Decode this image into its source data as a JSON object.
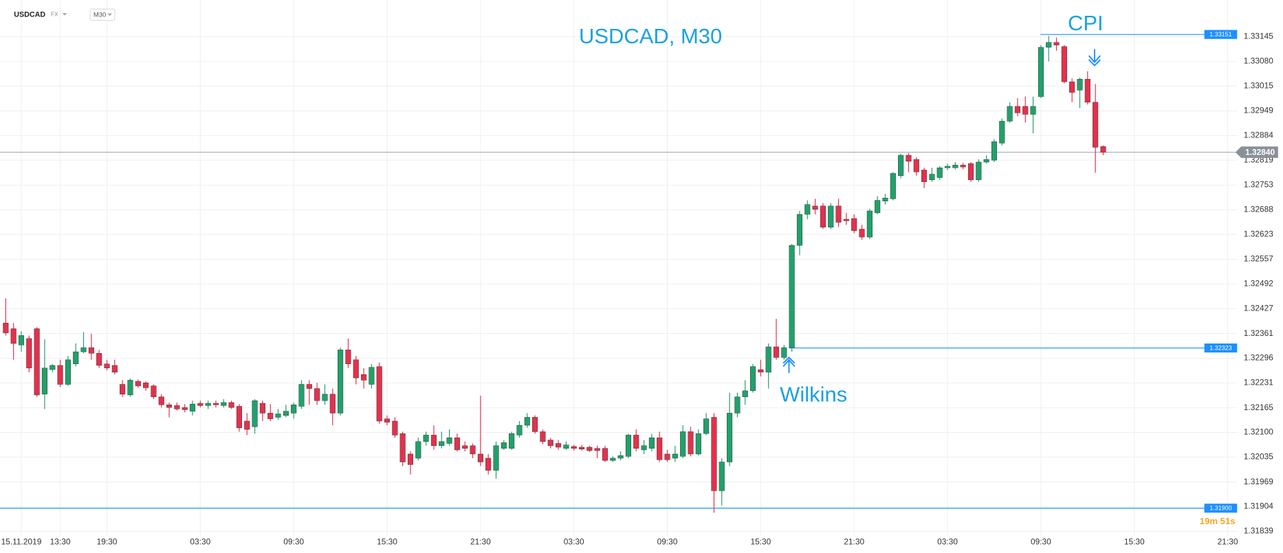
{
  "chart_data": {
    "type": "candlestick",
    "title": "USDCAD, M30",
    "symbol_label": "USDCAD",
    "market_label": "FX",
    "timeframe_label": "M30",
    "annotations": [
      "CPI",
      "Wilkins"
    ],
    "timer": "19m 51s",
    "up_color": "#22a06b",
    "down_color": "#e5304d",
    "level_color": "#1e90ff",
    "grid": true,
    "ylim": [
      1.31827,
      1.33242
    ],
    "yticks": [
      1.33145,
      {
        "value": 1.3308,
        "label": "1.33080"
      },
      1.33015,
      1.32949,
      1.32884,
      1.32819,
      1.32753,
      1.32688,
      1.32623,
      1.32557,
      1.32492,
      1.32427,
      1.32361,
      1.32296,
      1.32231,
      1.32165,
      {
        "value": 1.321,
        "label": "1.32100"
      },
      1.32035,
      1.31969,
      1.31904,
      1.31839
    ],
    "levels": [
      1.33151,
      1.32323,
      {
        "value": 1.319,
        "label": "1.31900"
      }
    ],
    "current_price": {
      "value": 1.3284,
      "label": "1.32840"
    },
    "categories": [
      null,
      null,
      "15.11.2019",
      null,
      null,
      null,
      null,
      "13:30",
      null,
      null,
      null,
      null,
      null,
      "19:30",
      null,
      null,
      null,
      null,
      null,
      null,
      null,
      null,
      null,
      null,
      null,
      "03:30",
      null,
      null,
      null,
      null,
      null,
      null,
      null,
      null,
      null,
      null,
      null,
      "09:30",
      null,
      null,
      null,
      null,
      null,
      null,
      null,
      null,
      null,
      null,
      null,
      "15:30",
      null,
      null,
      null,
      null,
      null,
      null,
      null,
      null,
      null,
      null,
      null,
      "21:30",
      null,
      null,
      null,
      null,
      null,
      null,
      null,
      null,
      null,
      null,
      null,
      "03:30",
      null,
      null,
      null,
      null,
      null,
      null,
      null,
      null,
      null,
      null,
      null,
      "09:30",
      null,
      null,
      null,
      null,
      null,
      null,
      null,
      null,
      null,
      null,
      null,
      "15:30",
      null,
      null,
      null,
      null,
      null,
      null,
      null,
      null,
      null,
      null,
      null,
      "21:30",
      null,
      null,
      null,
      null,
      null,
      null,
      null,
      null,
      null,
      null,
      null,
      "03:30",
      null,
      null,
      null,
      null,
      null,
      null,
      null,
      null,
      null,
      null,
      null,
      "09:30",
      null,
      null,
      null,
      null,
      null,
      null,
      null,
      null,
      null,
      null,
      null,
      "15:30",
      null,
      null,
      null,
      null,
      null,
      null,
      null,
      null,
      null,
      null,
      null,
      "21:30"
    ],
    "open": [
      1.32389,
      1.32374,
      1.32331,
      1.32348,
      1.32374,
      1.32201,
      1.32266,
      1.32277,
      1.32227,
      1.32281,
      1.32313,
      1.32324,
      1.32309,
      1.32281,
      1.32277,
      1.32227,
      1.32199,
      1.32235,
      1.32231,
      1.32223,
      1.32194,
      1.32173,
      1.32171,
      1.32166,
      1.32156,
      1.32177,
      1.32171,
      1.32177,
      1.32171,
      1.32179,
      1.32169,
      1.3213,
      1.32115,
      1.32177,
      1.32151,
      1.3214,
      1.32145,
      1.32151,
      1.32169,
      1.32227,
      1.32216,
      1.32184,
      1.32201,
      1.32151,
      1.32318,
      1.32292,
      1.32253,
      1.32227,
      1.32274,
      1.32136,
      1.3213,
      1.32097,
      1.32043,
      1.32032,
      1.32076,
      1.32093,
      1.32065,
      1.32071,
      1.32086,
      1.32065,
      1.32065,
      1.32043,
      1.32032,
      1.32,
      1.32058,
      1.32058,
      1.32093,
      1.32119,
      1.3214,
      1.32102,
      1.3208,
      1.32071,
      1.32058,
      1.32063,
      1.32061,
      1.32061,
      1.32058,
      1.32058,
      1.32026,
      1.32032,
      1.32037,
      1.32093,
      1.32054,
      1.32058,
      1.32086,
      1.32043,
      1.32032,
      1.32037,
      1.32102,
      1.32043,
      1.32097,
      1.3214,
      1.31946,
      1.32022,
      1.32151,
      1.32194,
      1.3221,
      1.32266,
      1.32259,
      1.32326,
      1.32298,
      1.32324,
      1.32594,
      1.32676,
      1.32698,
      1.32698,
      1.32642,
      1.32698,
      1.32663,
      1.32665,
      1.32637,
      1.32616,
      1.3268,
      1.32711,
      1.32717,
      1.32778,
      1.32832,
      1.32821,
      1.32793,
      1.32767,
      1.32773,
      1.32799,
      1.32799,
      1.32806,
      1.3281,
      1.32767,
      1.32814,
      1.32819,
      1.32864,
      1.32922,
      1.32961,
      1.32961,
      1.3294,
      1.32987,
      1.33117,
      1.3313,
      1.33119,
      1.33026,
      1.33004,
      1.33033,
      1.32972,
      1.32855,
      null,
      null,
      null,
      null,
      null,
      null,
      null,
      null,
      null,
      null,
      null,
      null,
      null,
      null,
      null,
      null
    ],
    "high": [
      1.32454,
      1.32389,
      1.32367,
      1.32356,
      1.32378,
      1.32346,
      1.32281,
      1.32292,
      1.32302,
      1.32335,
      1.32365,
      1.32361,
      1.32318,
      1.32292,
      1.32292,
      1.32238,
      1.32242,
      1.3224,
      1.32235,
      1.32227,
      1.32201,
      1.32179,
      1.32179,
      1.32175,
      1.32184,
      1.32184,
      1.32184,
      1.32184,
      1.32188,
      1.32184,
      1.32175,
      1.32151,
      1.32188,
      1.32184,
      1.32175,
      1.32162,
      1.32173,
      1.32179,
      1.32238,
      1.32238,
      1.32231,
      1.32227,
      1.32216,
      1.32324,
      1.32348,
      1.32302,
      1.3227,
      1.32281,
      1.32285,
      1.32145,
      1.3214,
      1.32102,
      1.3205,
      1.32086,
      1.32102,
      1.32119,
      1.32102,
      1.32108,
      1.32097,
      1.32076,
      1.32071,
      1.32197,
      1.32043,
      1.32076,
      1.3208,
      1.32102,
      1.3213,
      1.32151,
      1.32145,
      1.32108,
      1.32086,
      1.3208,
      1.32076,
      1.32067,
      1.32067,
      1.32065,
      1.32065,
      1.32065,
      1.32037,
      1.3205,
      1.32097,
      1.32108,
      1.3208,
      1.32097,
      1.32102,
      1.32054,
      1.32065,
      1.32119,
      1.32115,
      1.32108,
      1.32151,
      1.32151,
      1.32032,
      1.32205,
      1.32205,
      1.32238,
      1.32281,
      1.32292,
      1.32335,
      1.324,
      1.32331,
      1.32598,
      1.32685,
      1.32713,
      1.32717,
      1.32706,
      1.32706,
      1.32717,
      1.3268,
      1.32676,
      1.32648,
      1.32691,
      1.32724,
      1.3273,
      1.32788,
      1.32836,
      1.32838,
      1.32827,
      1.32799,
      1.32799,
      1.32803,
      1.3281,
      1.32814,
      1.32812,
      1.32814,
      1.32821,
      1.32832,
      1.32875,
      1.32929,
      1.32972,
      1.32983,
      1.32987,
      1.32987,
      1.33123,
      1.33147,
      1.33143,
      1.33123,
      1.33035,
      1.33037,
      1.33054,
      1.3302,
      1.32858,
      null,
      null,
      null,
      null,
      null,
      null,
      null,
      null,
      null,
      null,
      null,
      null,
      null,
      null,
      null,
      null
    ],
    "low": [
      1.32356,
      1.32292,
      1.32313,
      1.32259,
      1.32194,
      1.32162,
      1.32259,
      1.3222,
      1.32223,
      1.32274,
      1.32309,
      1.32292,
      1.3227,
      1.32264,
      1.32253,
      1.32194,
      1.32194,
      1.32218,
      1.3221,
      1.32188,
      1.32166,
      1.3214,
      1.32158,
      1.32153,
      1.32145,
      1.32166,
      1.32162,
      1.32166,
      1.32166,
      1.32162,
      1.32102,
      1.32093,
      1.32097,
      1.3213,
      1.3213,
      1.32134,
      1.3214,
      1.32136,
      1.32162,
      1.32173,
      1.32173,
      1.32173,
      1.32119,
      1.32145,
      1.3227,
      1.32227,
      1.32216,
      1.32216,
      1.32123,
      1.32119,
      1.32086,
      1.32011,
      1.31989,
      1.32026,
      1.32065,
      1.32054,
      1.32058,
      1.32065,
      1.3205,
      1.3205,
      1.32032,
      1.32011,
      1.31989,
      1.31978,
      1.32054,
      1.32054,
      1.32086,
      1.32112,
      1.32097,
      1.32069,
      1.32058,
      1.32054,
      1.32054,
      1.32052,
      1.32052,
      1.32048,
      1.32032,
      1.32022,
      1.32022,
      1.32026,
      1.32032,
      1.3205,
      1.32043,
      1.3205,
      1.32022,
      1.32022,
      1.32022,
      1.32032,
      1.32037,
      1.32039,
      1.32093,
      1.31888,
      1.31907,
      1.32011,
      1.3214,
      1.32173,
      1.32205,
      1.32248,
      1.32216,
      1.32292,
      1.32292,
      1.32313,
      1.32568,
      1.32663,
      1.32676,
      1.32637,
      1.32637,
      1.32642,
      1.32648,
      1.32626,
      1.32609,
      1.32611,
      1.32676,
      1.32702,
      1.32713,
      1.32771,
      1.32788,
      1.32778,
      1.32745,
      1.32762,
      1.32767,
      1.32793,
      1.32795,
      1.32795,
      1.32762,
      1.32762,
      1.3281,
      1.32814,
      1.32858,
      1.32918,
      1.32935,
      1.32918,
      1.3289,
      1.32983,
      1.3308,
      1.33108,
      1.33022,
      1.32972,
      1.32957,
      1.32966,
      1.32786,
      1.32832,
      null,
      null,
      null,
      null,
      null,
      null,
      null,
      null,
      null,
      null,
      null,
      null,
      null,
      null,
      null,
      null
    ],
    "close": [
      1.32363,
      1.32335,
      1.32356,
      1.3227,
      1.32199,
      1.3227,
      1.32277,
      1.32227,
      1.32292,
      1.32313,
      1.32324,
      1.32309,
      1.32277,
      1.3227,
      1.32259,
      1.32201,
      1.32238,
      1.32223,
      1.32218,
      1.32194,
      1.32173,
      1.32166,
      1.32162,
      1.3216,
      1.32175,
      1.32171,
      1.32177,
      1.32173,
      1.32179,
      1.32166,
      1.32112,
      1.32108,
      1.32184,
      1.32151,
      1.32136,
      1.32149,
      1.32156,
      1.32173,
      1.32227,
      1.32216,
      1.32184,
      1.32201,
      1.32151,
      1.32318,
      1.32281,
      1.32244,
      1.32238,
      1.32272,
      1.3213,
      1.32127,
      1.32093,
      1.32022,
      1.32015,
      1.32076,
      1.32093,
      1.32065,
      1.32076,
      1.32086,
      1.32054,
      1.32058,
      1.32043,
      1.32022,
      1.32,
      1.32065,
      1.32073,
      1.32097,
      1.32119,
      1.3214,
      1.32102,
      1.32076,
      1.32065,
      1.32061,
      1.32067,
      1.32058,
      1.32056,
      1.32052,
      1.32052,
      1.32026,
      1.32032,
      1.32039,
      1.32093,
      1.32058,
      1.32065,
      1.32086,
      1.32028,
      1.32028,
      1.32043,
      1.32102,
      1.32043,
      1.32097,
      1.32136,
      1.31946,
      1.32022,
      1.32151,
      1.32194,
      1.3221,
      1.32274,
      1.32259,
      1.32326,
      1.32298,
      1.32324,
      1.32594,
      1.32676,
      1.32702,
      1.32689,
      1.32642,
      1.32698,
      1.32655,
      1.32659,
      1.32633,
      1.32616,
      1.32685,
      1.32713,
      1.32719,
      1.32784,
      1.32832,
      1.32816,
      1.32788,
      1.32762,
      1.32782,
      1.32799,
      1.32803,
      1.32806,
      1.32801,
      1.32767,
      1.32814,
      1.32821,
      1.32868,
      1.32922,
      1.32961,
      1.32944,
      1.3294,
      1.32961,
      1.33117,
      1.3313,
      1.33123,
      1.33026,
      1.32998,
      1.33033,
      1.32972,
      1.32853,
      1.3284,
      null,
      null,
      null,
      null,
      null,
      null,
      null,
      null,
      null,
      null,
      null,
      null,
      null,
      null,
      null,
      null
    ]
  }
}
